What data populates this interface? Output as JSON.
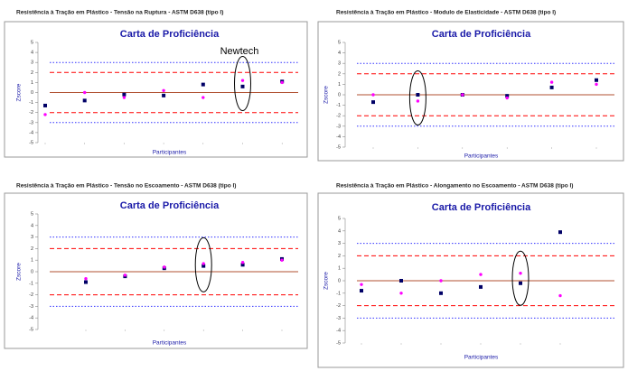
{
  "chart_data": [
    {
      "type": "scatter",
      "title": "Resistência à Tração em Plástico - Tensão na Ruptura - ASTM D638 (tipo I)",
      "plot_title": "Carta de Proficiência",
      "xlabel": "Participantes",
      "ylabel": "Zscore",
      "annotation": "Newtech",
      "categories": [
        null,
        null,
        null,
        null,
        null,
        null,
        null
      ],
      "series": [
        {
          "color": "#000066",
          "marker": "square",
          "values": [
            -1.3,
            -0.8,
            -0.2,
            -0.3,
            0.8,
            0.6,
            1.1
          ]
        },
        {
          "color": "#ff00ff",
          "marker": "circle",
          "values": [
            -2.2,
            0,
            -0.5,
            0.2,
            -0.5,
            1.2,
            1.0
          ]
        }
      ],
      "reference_lines": [
        {
          "value": 3,
          "color": "#3333ff",
          "style": "dotted"
        },
        {
          "value": 2,
          "color": "#ff0000",
          "style": "dashed"
        },
        {
          "value": 0,
          "color": "#b05030",
          "style": "solid"
        },
        {
          "value": -2,
          "color": "#ff0000",
          "style": "dashed"
        },
        {
          "value": -3,
          "color": "#3333ff",
          "style": "dotted"
        }
      ],
      "ylim": [
        -5,
        5
      ],
      "yticks": [
        -5,
        -4,
        -3,
        -2,
        -1,
        0,
        1,
        2,
        3,
        4,
        5
      ]
    },
    {
      "type": "scatter",
      "title": "Resistência à Tração em Plástico - Modulo de Elasticidade - ASTM D638 (tipo I)",
      "plot_title": "Carta de Proficiência",
      "xlabel": "Participantes",
      "ylabel": "Zscore",
      "categories": [
        null,
        null,
        null,
        null,
        null,
        null
      ],
      "series": [
        {
          "color": "#000066",
          "marker": "square",
          "values": [
            -0.7,
            0,
            0,
            -0.1,
            0.7,
            1.4
          ]
        },
        {
          "color": "#ff00ff",
          "marker": "circle",
          "values": [
            0,
            -0.6,
            0,
            -0.3,
            1.2,
            1.0
          ]
        }
      ],
      "reference_lines": [
        {
          "value": 3,
          "color": "#3333ff",
          "style": "dotted"
        },
        {
          "value": 2,
          "color": "#ff0000",
          "style": "dashed"
        },
        {
          "value": 0,
          "color": "#b05030",
          "style": "solid"
        },
        {
          "value": -2,
          "color": "#ff0000",
          "style": "dashed"
        },
        {
          "value": -3,
          "color": "#3333ff",
          "style": "dotted"
        }
      ],
      "ylim": [
        -5,
        5
      ],
      "yticks": [
        -5,
        -4,
        -3,
        -2,
        -1,
        0,
        1,
        2,
        3,
        4,
        5
      ]
    },
    {
      "type": "scatter",
      "title": "Resistência à Tração em Plástico - Tensão no Escoamento - ASTM D638 (tipo I)",
      "plot_title": "Carta de Proficiência",
      "xlabel": "Participantes",
      "ylabel": "Zscore",
      "categories": [
        null,
        null,
        null,
        null,
        null,
        null
      ],
      "series": [
        {
          "color": "#000066",
          "marker": "square",
          "values": [
            -0.9,
            -0.4,
            0.3,
            0.5,
            0.6,
            1.1
          ]
        },
        {
          "color": "#ff00ff",
          "marker": "circle",
          "values": [
            -0.6,
            -0.3,
            0.4,
            0.7,
            0.8,
            1.0
          ]
        }
      ],
      "reference_lines": [
        {
          "value": 3,
          "color": "#3333ff",
          "style": "dotted"
        },
        {
          "value": 2,
          "color": "#ff0000",
          "style": "dashed"
        },
        {
          "value": 0,
          "color": "#b05030",
          "style": "solid"
        },
        {
          "value": -2,
          "color": "#ff0000",
          "style": "dashed"
        },
        {
          "value": -3,
          "color": "#3333ff",
          "style": "dotted"
        }
      ],
      "ylim": [
        -5,
        5
      ],
      "yticks": [
        -5,
        -4,
        -3,
        -2,
        -1,
        0,
        1,
        2,
        3,
        4,
        5
      ]
    },
    {
      "type": "scatter",
      "title": "Resistência à Tração em Plástico - Alongamento no Escoamento - ASTM D638 (tipo I)",
      "plot_title": "Carta de Proficiência",
      "xlabel": "Participantes",
      "ylabel": "Zscore",
      "categories": [
        null,
        null,
        null,
        null,
        null,
        null
      ],
      "series": [
        {
          "color": "#000066",
          "marker": "square",
          "values": [
            -0.8,
            0,
            -1.0,
            -0.5,
            -0.2,
            3.9
          ]
        },
        {
          "color": "#ff00ff",
          "marker": "circle",
          "values": [
            -0.3,
            -1.0,
            0,
            0.5,
            0.6,
            -1.2
          ]
        }
      ],
      "reference_lines": [
        {
          "value": 3,
          "color": "#3333ff",
          "style": "dotted"
        },
        {
          "value": 2,
          "color": "#ff0000",
          "style": "dashed"
        },
        {
          "value": 0,
          "color": "#b05030",
          "style": "solid"
        },
        {
          "value": -2,
          "color": "#ff0000",
          "style": "dashed"
        },
        {
          "value": -3,
          "color": "#3333ff",
          "style": "dotted"
        }
      ],
      "ylim": [
        -5,
        5
      ],
      "yticks": [
        -5,
        -4,
        -3,
        -2,
        -1,
        0,
        1,
        2,
        3,
        4,
        5
      ]
    }
  ]
}
